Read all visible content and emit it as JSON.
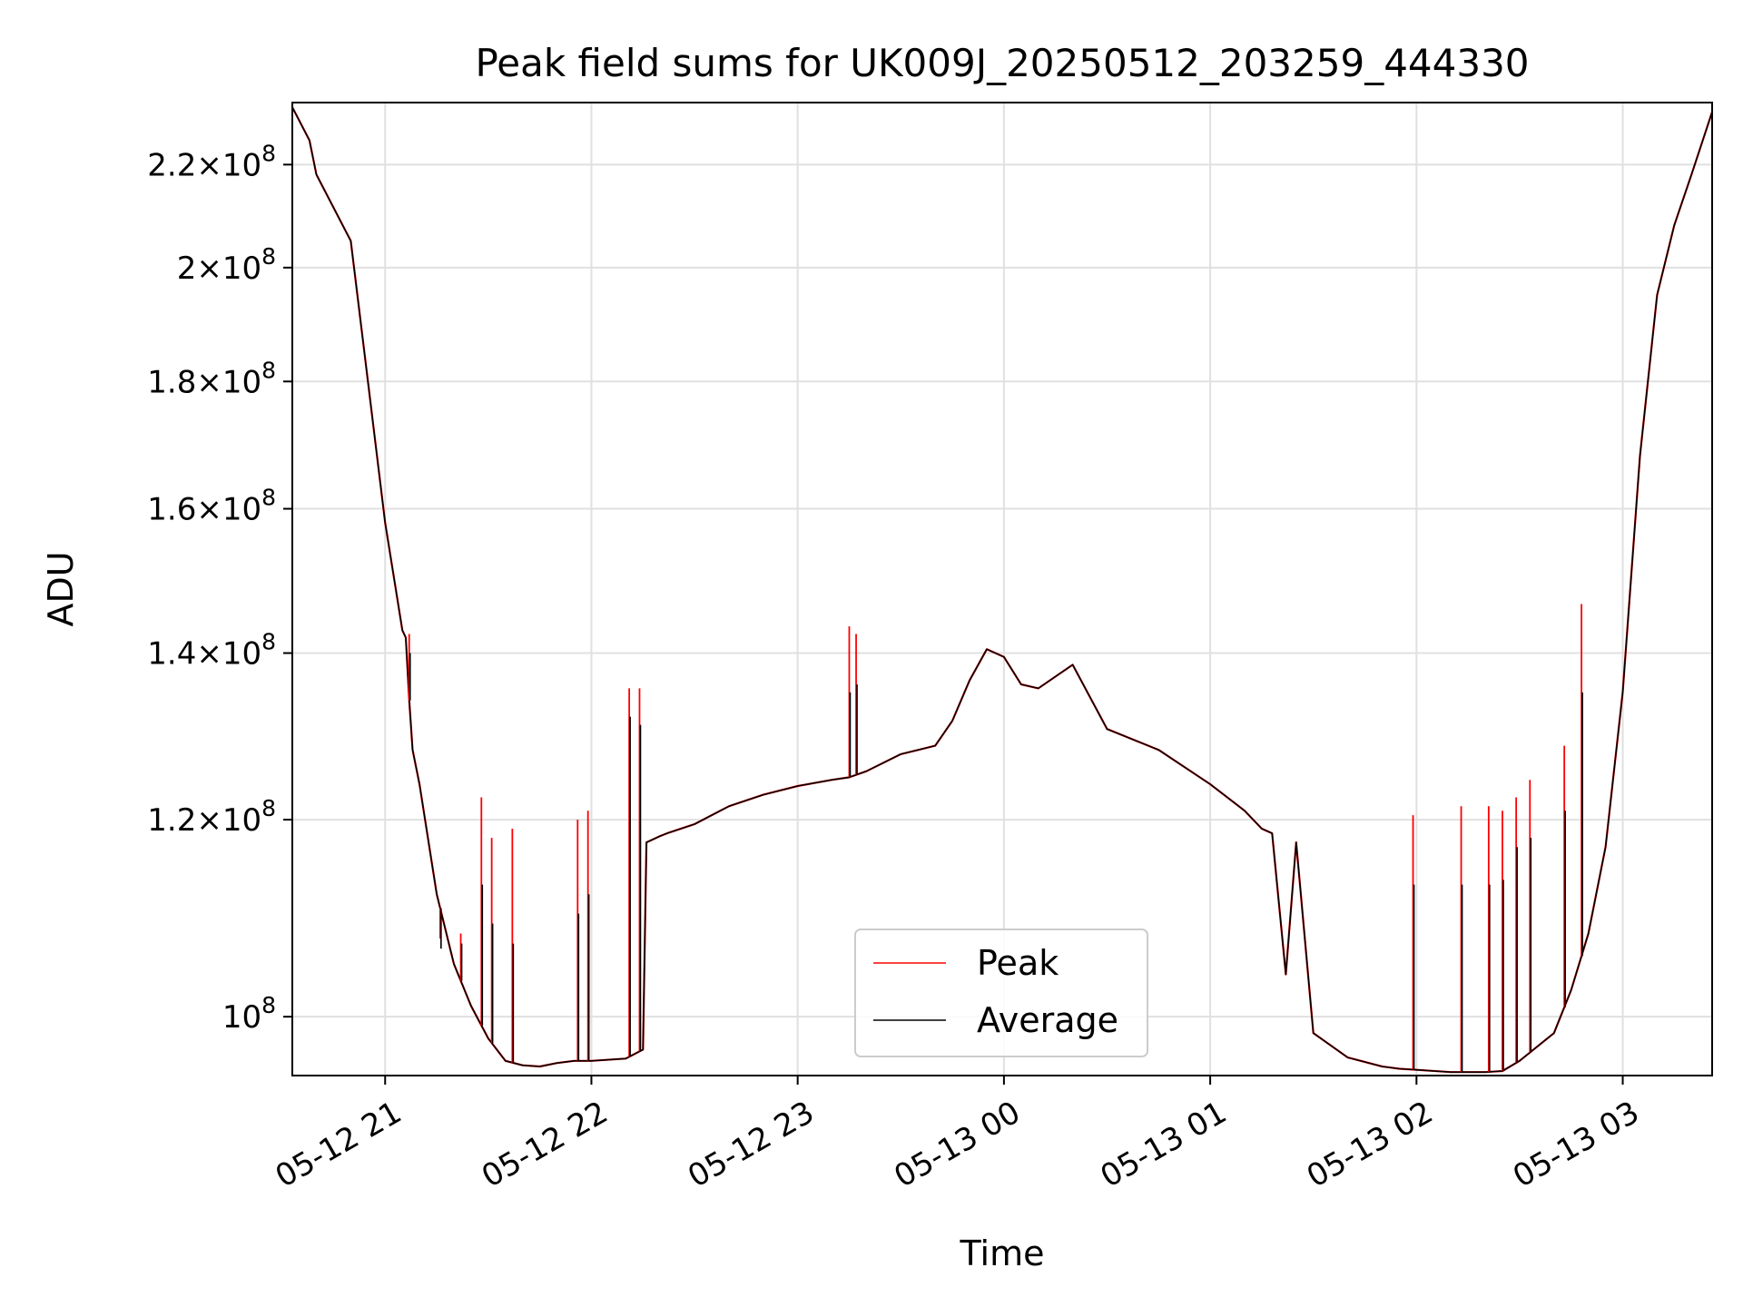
{
  "chart_data": {
    "type": "line",
    "title": "Peak field sums for UK009J_20250512_203259_444330",
    "xlabel": "Time",
    "ylabel": "ADU",
    "y_scale": "log",
    "grid": true,
    "legend_position": "lower center",
    "xlim": [
      "2025-05-12 20:33",
      "2025-05-13 03:26"
    ],
    "ylim": [
      94700000,
      233000000
    ],
    "x_ticks": [
      {
        "value": "2025-05-12 21:00",
        "label": "05-12 21"
      },
      {
        "value": "2025-05-12 22:00",
        "label": "05-12 22"
      },
      {
        "value": "2025-05-12 23:00",
        "label": "05-12 23"
      },
      {
        "value": "2025-05-13 00:00",
        "label": "05-13 00"
      },
      {
        "value": "2025-05-13 01:00",
        "label": "05-13 01"
      },
      {
        "value": "2025-05-13 02:00",
        "label": "05-13 02"
      },
      {
        "value": "2025-05-13 03:00",
        "label": "05-13 03"
      }
    ],
    "y_ticks": [
      {
        "value": 100000000,
        "mant": "",
        "exp": "8"
      },
      {
        "value": 120000000,
        "mant": "1.2",
        "exp": "8"
      },
      {
        "value": 140000000,
        "mant": "1.4",
        "exp": "8"
      },
      {
        "value": 160000000,
        "mant": "1.6",
        "exp": "8"
      },
      {
        "value": 180000000,
        "mant": "1.8",
        "exp": "8"
      },
      {
        "value": 200000000,
        "mant": "2",
        "exp": "8"
      },
      {
        "value": 220000000,
        "mant": "2.2",
        "exp": "8"
      }
    ],
    "series": [
      {
        "name": "Peak",
        "color": "#ff0000",
        "x": [
          "2025-05-12 20:33",
          "2025-05-12 20:38",
          "2025-05-12 20:40",
          "2025-05-12 20:50",
          "2025-05-12 20:55",
          "2025-05-12 21:00",
          "2025-05-12 21:05",
          "2025-05-12 21:06",
          "2025-05-12 21:07",
          "2025-05-12 21:08",
          "2025-05-12 21:10",
          "2025-05-12 21:15",
          "2025-05-12 21:20",
          "2025-05-12 21:25",
          "2025-05-12 21:30",
          "2025-05-12 21:35",
          "2025-05-12 21:40",
          "2025-05-12 21:45",
          "2025-05-12 21:50",
          "2025-05-12 21:55",
          "2025-05-12 22:00",
          "2025-05-12 22:10",
          "2025-05-12 22:15",
          "2025-05-12 22:16",
          "2025-05-12 22:20",
          "2025-05-12 22:22",
          "2025-05-12 22:30",
          "2025-05-12 22:40",
          "2025-05-12 22:50",
          "2025-05-12 23:00",
          "2025-05-12 23:10",
          "2025-05-12 23:15",
          "2025-05-12 23:20",
          "2025-05-12 23:30",
          "2025-05-12 23:40",
          "2025-05-12 23:45",
          "2025-05-12 23:50",
          "2025-05-12 23:55",
          "2025-05-13 00:00",
          "2025-05-13 00:05",
          "2025-05-13 00:10",
          "2025-05-13 00:20",
          "2025-05-13 00:30",
          "2025-05-13 00:45",
          "2025-05-13 01:00",
          "2025-05-13 01:10",
          "2025-05-13 01:15",
          "2025-05-13 01:18",
          "2025-05-13 01:22",
          "2025-05-13 01:25",
          "2025-05-13 01:30",
          "2025-05-13 01:40",
          "2025-05-13 01:50",
          "2025-05-13 01:55",
          "2025-05-13 02:00",
          "2025-05-13 02:10",
          "2025-05-13 02:20",
          "2025-05-13 02:25",
          "2025-05-13 02:30",
          "2025-05-13 02:40",
          "2025-05-13 02:45",
          "2025-05-13 02:50",
          "2025-05-13 02:55",
          "2025-05-13 03:00",
          "2025-05-13 03:05",
          "2025-05-13 03:10",
          "2025-05-13 03:15",
          "2025-05-13 03:20",
          "2025-05-13 03:26"
        ],
        "y": [
          232000000,
          225000000,
          218000000,
          205000000,
          180000000,
          158000000,
          143000000,
          142000000,
          134000000,
          128000000,
          124000000,
          112000000,
          105000000,
          101000000,
          98000000,
          96000000,
          95600000,
          95500000,
          95800000,
          96000000,
          96000000,
          96200000,
          97000000,
          117500000,
          118200000,
          118500000,
          119500000,
          121500000,
          122800000,
          123800000,
          124500000,
          124800000,
          125500000,
          127500000,
          128500000,
          131500000,
          136500000,
          140500000,
          139500000,
          136000000,
          135500000,
          138500000,
          130500000,
          128000000,
          124000000,
          121000000,
          119000000,
          118500000,
          104000000,
          117500000,
          98500000,
          96300000,
          95500000,
          95300000,
          95200000,
          95000000,
          95000000,
          95100000,
          96000000,
          98500000,
          102500000,
          108000000,
          117000000,
          135000000,
          168000000,
          195000000,
          208000000,
          218000000,
          231000000
        ]
      },
      {
        "name": "Average",
        "color": "#000000",
        "x": [
          "2025-05-12 20:33",
          "2025-05-12 20:38",
          "2025-05-12 20:40",
          "2025-05-12 20:50",
          "2025-05-12 20:55",
          "2025-05-12 21:00",
          "2025-05-12 21:05",
          "2025-05-12 21:06",
          "2025-05-12 21:07",
          "2025-05-12 21:08",
          "2025-05-12 21:10",
          "2025-05-12 21:15",
          "2025-05-12 21:20",
          "2025-05-12 21:25",
          "2025-05-12 21:30",
          "2025-05-12 21:35",
          "2025-05-12 21:40",
          "2025-05-12 21:45",
          "2025-05-12 21:50",
          "2025-05-12 21:55",
          "2025-05-12 22:00",
          "2025-05-12 22:10",
          "2025-05-12 22:15",
          "2025-05-12 22:16",
          "2025-05-12 22:20",
          "2025-05-12 22:22",
          "2025-05-12 22:30",
          "2025-05-12 22:40",
          "2025-05-12 22:50",
          "2025-05-12 23:00",
          "2025-05-12 23:10",
          "2025-05-12 23:15",
          "2025-05-12 23:20",
          "2025-05-12 23:30",
          "2025-05-12 23:40",
          "2025-05-12 23:45",
          "2025-05-12 23:50",
          "2025-05-12 23:55",
          "2025-05-13 00:00",
          "2025-05-13 00:05",
          "2025-05-13 00:10",
          "2025-05-13 00:20",
          "2025-05-13 00:30",
          "2025-05-13 00:45",
          "2025-05-13 01:00",
          "2025-05-13 01:10",
          "2025-05-13 01:15",
          "2025-05-13 01:18",
          "2025-05-13 01:22",
          "2025-05-13 01:25",
          "2025-05-13 01:30",
          "2025-05-13 01:40",
          "2025-05-13 01:50",
          "2025-05-13 01:55",
          "2025-05-13 02:00",
          "2025-05-13 02:10",
          "2025-05-13 02:20",
          "2025-05-13 02:25",
          "2025-05-13 02:30",
          "2025-05-13 02:40",
          "2025-05-13 02:45",
          "2025-05-13 02:50",
          "2025-05-13 02:55",
          "2025-05-13 03:00",
          "2025-05-13 03:05",
          "2025-05-13 03:10",
          "2025-05-13 03:15",
          "2025-05-13 03:20",
          "2025-05-13 03:26"
        ],
        "y": [
          232000000,
          225000000,
          218000000,
          205000000,
          180000000,
          158000000,
          143000000,
          142000000,
          134000000,
          128000000,
          124000000,
          112000000,
          105000000,
          101000000,
          98000000,
          96000000,
          95600000,
          95500000,
          95800000,
          96000000,
          96000000,
          96200000,
          97000000,
          117500000,
          118200000,
          118500000,
          119500000,
          121500000,
          122800000,
          123800000,
          124500000,
          124800000,
          125500000,
          127500000,
          128500000,
          131500000,
          136500000,
          140500000,
          139500000,
          136000000,
          135500000,
          138500000,
          130500000,
          128000000,
          124000000,
          121000000,
          119000000,
          118500000,
          104000000,
          117500000,
          98500000,
          96300000,
          95500000,
          95300000,
          95200000,
          95000000,
          95000000,
          95100000,
          96000000,
          98500000,
          102500000,
          108000000,
          117000000,
          135000000,
          168000000,
          195000000,
          208000000,
          218000000,
          231000000
        ]
      }
    ],
    "spikes": [
      {
        "x": "2025-05-12 21:07",
        "peak": 142500000,
        "avg": 140000000
      },
      {
        "x": "2025-05-12 21:16",
        "peak": 107500000,
        "avg": 106500000
      },
      {
        "x": "2025-05-12 21:22",
        "peak": 108000000,
        "avg": 107000000
      },
      {
        "x": "2025-05-12 21:28",
        "peak": 122500000,
        "avg": 113000000
      },
      {
        "x": "2025-05-12 21:31",
        "peak": 118000000,
        "avg": 109000000
      },
      {
        "x": "2025-05-12 21:37",
        "peak": 119000000,
        "avg": 107000000
      },
      {
        "x": "2025-05-12 21:56",
        "peak": 120000000,
        "avg": 110000000
      },
      {
        "x": "2025-05-12 21:59",
        "peak": 121000000,
        "avg": 112000000
      },
      {
        "x": "2025-05-12 22:11",
        "peak": 135500000,
        "avg": 132000000
      },
      {
        "x": "2025-05-12 22:14",
        "peak": 135500000,
        "avg": 131000000
      },
      {
        "x": "2025-05-12 23:15",
        "peak": 143500000,
        "avg": 135000000
      },
      {
        "x": "2025-05-12 23:17",
        "peak": 142500000,
        "avg": 136000000
      },
      {
        "x": "2025-05-13 01:59",
        "peak": 120500000,
        "avg": 113000000
      },
      {
        "x": "2025-05-13 02:13",
        "peak": 121500000,
        "avg": 113000000
      },
      {
        "x": "2025-05-13 02:21",
        "peak": 121500000,
        "avg": 113000000
      },
      {
        "x": "2025-05-13 02:25",
        "peak": 121000000,
        "avg": 113500000
      },
      {
        "x": "2025-05-13 02:29",
        "peak": 122500000,
        "avg": 117000000
      },
      {
        "x": "2025-05-13 02:33",
        "peak": 124500000,
        "avg": 118000000
      },
      {
        "x": "2025-05-13 02:43",
        "peak": 128500000,
        "avg": 121000000
      },
      {
        "x": "2025-05-13 02:48",
        "peak": 146500000,
        "avg": 135000000
      }
    ]
  }
}
